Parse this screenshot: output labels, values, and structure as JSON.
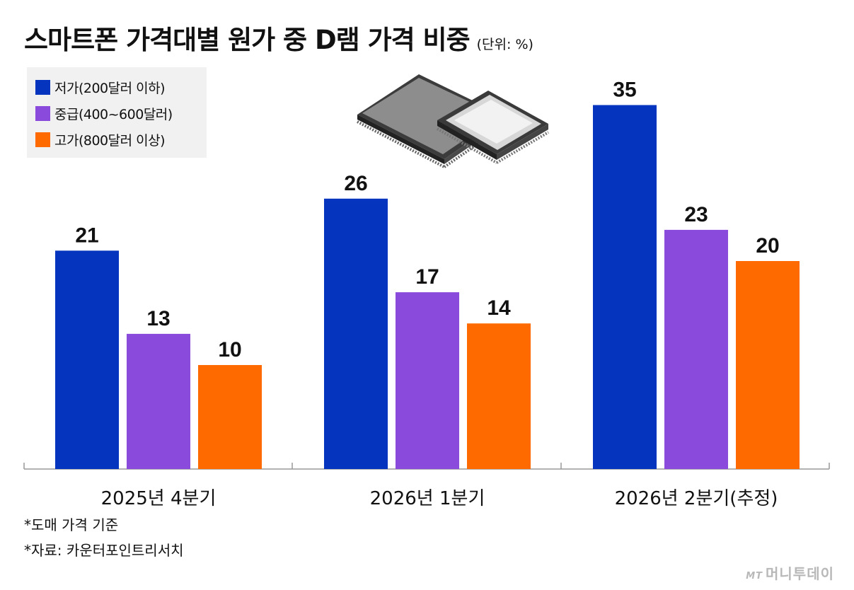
{
  "title": "스마트폰 가격대별 원가 중 D램 가격 비중",
  "unit": "(단위: %)",
  "colors": {
    "low": "#0535bf",
    "mid": "#8a4bdc",
    "high": "#ff6a00",
    "axis": "#999999"
  },
  "notes": [
    "*도매 가격 기준",
    "*자료: 카운터포인트리서치"
  ],
  "watermark": {
    "mt": "MT",
    "name": "머니투데이"
  },
  "chart_data": {
    "type": "bar",
    "title": "스마트폰 가격대별 원가 중 D램 가격 비중",
    "unit": "%",
    "categories": [
      "2025년 4분기",
      "2026년 1분기",
      "2026년 2분기(추정)"
    ],
    "series": [
      {
        "name": "저가(200달러 이하)",
        "color": "#0535bf",
        "values": [
          21,
          26,
          35
        ]
      },
      {
        "name": "중급(400~600달러)",
        "color": "#8a4bdc",
        "values": [
          13,
          17,
          23
        ]
      },
      {
        "name": "고가(800달러 이상)",
        "color": "#ff6a00",
        "values": [
          10,
          14,
          20
        ]
      }
    ],
    "ylim": [
      0,
      40
    ],
    "grid": false,
    "legend": "top-left",
    "data_labels": true
  }
}
